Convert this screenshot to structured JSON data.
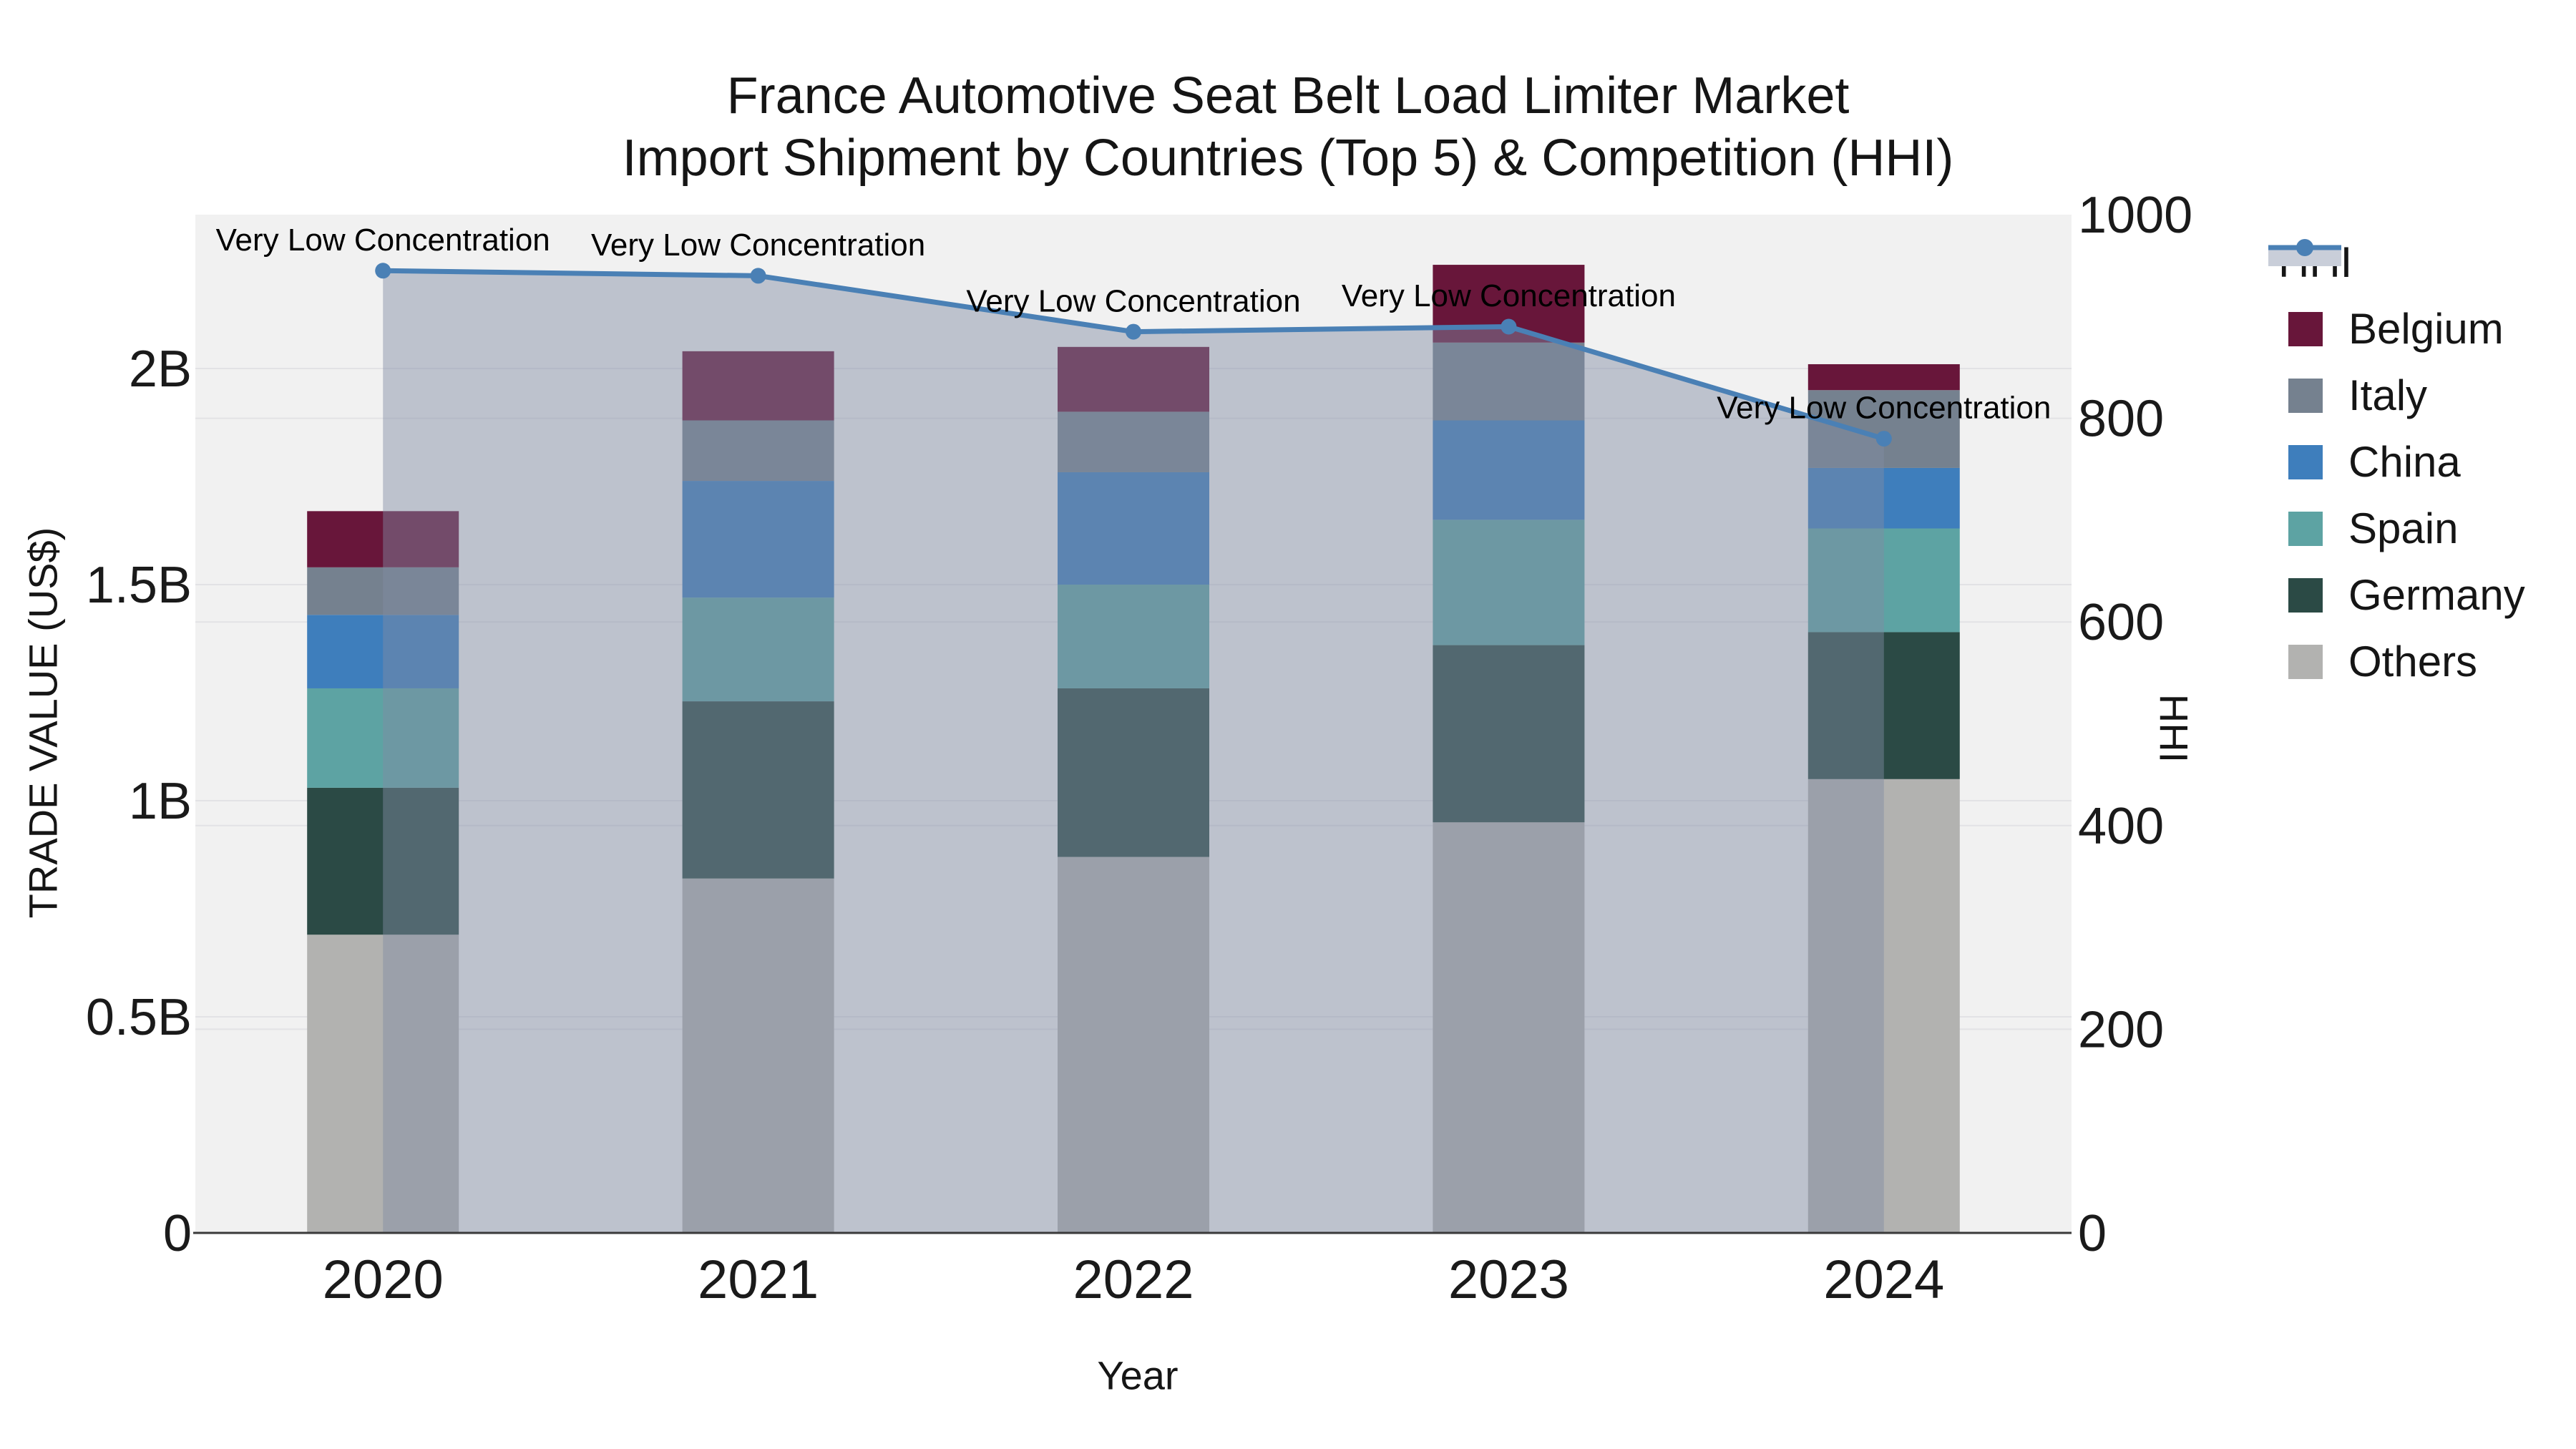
{
  "title": {
    "line1": "France Automotive Seat Belt Load Limiter Market",
    "line2": "Import Shipment by Countries (Top 5) & Competition (HHI)"
  },
  "chart_data": {
    "type": "combo: stacked bar (left axis) + line with area fill (right axis)",
    "categories": [
      "2020",
      "2021",
      "2022",
      "2023",
      "2024"
    ],
    "x_title": "Year",
    "y_left": {
      "title": "TRADE VALUE (US$)",
      "units": "billions of US$",
      "tick_labels": [
        "0",
        "0.5B",
        "1B",
        "1.5B",
        "2B"
      ],
      "tick_values": [
        0,
        0.5,
        1,
        1.5,
        2
      ],
      "range": [
        0,
        2.356
      ]
    },
    "y_right": {
      "title": "HHI",
      "tick_labels": [
        "0",
        "200",
        "400",
        "600",
        "800",
        "1000"
      ],
      "tick_values": [
        0,
        200,
        400,
        600,
        800,
        1000
      ],
      "range": [
        0,
        1000
      ]
    },
    "bar_series_bottom_to_top": [
      {
        "name": "Others",
        "color": "#b2b2b0",
        "values_billion": [
          0.69,
          0.82,
          0.87,
          0.95,
          1.05
        ]
      },
      {
        "name": "Germany",
        "color": "#2b4a45",
        "values_billion": [
          0.34,
          0.41,
          0.39,
          0.41,
          0.34
        ]
      },
      {
        "name": "Spain",
        "color": "#5da3a3",
        "values_billion": [
          0.23,
          0.24,
          0.24,
          0.29,
          0.24
        ]
      },
      {
        "name": "China",
        "color": "#3e7ebc",
        "values_billion": [
          0.17,
          0.27,
          0.26,
          0.23,
          0.14
        ]
      },
      {
        "name": "Italy",
        "color": "#75818f",
        "values_billion": [
          0.11,
          0.14,
          0.14,
          0.18,
          0.18
        ]
      },
      {
        "name": "Belgium",
        "color": "#68163a",
        "values_billion": [
          0.13,
          0.16,
          0.15,
          0.18,
          0.06
        ]
      }
    ],
    "bar_totals_billion": [
      1.67,
      2.04,
      2.05,
      2.24,
      2.01
    ],
    "line_series": {
      "name": "HHI",
      "color": "#4a80b5",
      "area_fill_color": "rgba(128,140,164,0.46)",
      "legend_fill_sample_color": "#c9ced9",
      "axis": "right",
      "values": [
        945,
        940,
        885,
        890,
        780
      ]
    },
    "annotations": [
      "Very Low Concentration",
      "Very Low Concentration",
      "Very Low Concentration",
      "Very Low Concentration",
      "Very Low Concentration"
    ],
    "plot_bg": "#f1f1f1",
    "grid_color": "#e2e2e5",
    "axis_line_color": "#3a3a3a",
    "legend_position": "right"
  },
  "legend": {
    "items": [
      {
        "label": "HHI",
        "type": "line",
        "color": "#4a80b5"
      },
      {
        "label": "Belgium",
        "type": "square",
        "color": "#68163a"
      },
      {
        "label": "Italy",
        "type": "square",
        "color": "#75818f"
      },
      {
        "label": "China",
        "type": "square",
        "color": "#3e7ebc"
      },
      {
        "label": "Spain",
        "type": "square",
        "color": "#5da3a3"
      },
      {
        "label": "Germany",
        "type": "square",
        "color": "#2b4a45"
      },
      {
        "label": "Others",
        "type": "square",
        "color": "#b2b2b0"
      }
    ]
  }
}
